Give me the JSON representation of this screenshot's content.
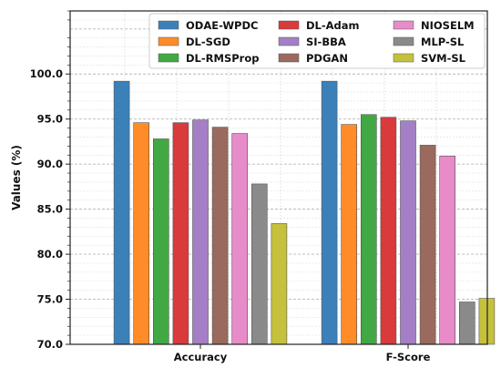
{
  "chart_data": {
    "type": "bar",
    "categories": [
      "Accuracy",
      "F-Score"
    ],
    "ylabel": "Values (%)",
    "xlabel": "",
    "ylim": [
      70.0,
      107.0
    ],
    "yticks": [
      "70.0",
      "75.0",
      "80.0",
      "85.0",
      "90.0",
      "95.0",
      "100.0"
    ],
    "grid": true,
    "legend_position": "top",
    "series": [
      {
        "name": "ODAE-WPDC",
        "color": "#3b80b9",
        "values": [
          99.2,
          99.2
        ]
      },
      {
        "name": "DL-SGD",
        "color": "#ff8c28",
        "values": [
          94.6,
          94.4
        ]
      },
      {
        "name": "DL-RMSProp",
        "color": "#42a844",
        "values": [
          92.8,
          95.5
        ]
      },
      {
        "name": "DL-Adam",
        "color": "#d93a3b",
        "values": [
          94.6,
          95.2
        ]
      },
      {
        "name": "SI-BBA",
        "color": "#a47fc6",
        "values": [
          94.9,
          94.8
        ]
      },
      {
        "name": "PDGAN",
        "color": "#9b6a5e",
        "values": [
          94.1,
          92.1
        ]
      },
      {
        "name": "NIOSELM",
        "color": "#e88bc9",
        "values": [
          93.4,
          90.9
        ]
      },
      {
        "name": "MLP-SL",
        "color": "#8a8a8a",
        "values": [
          87.8,
          74.7
        ]
      },
      {
        "name": "SVM-SL",
        "color": "#c6c13c",
        "values": [
          83.4,
          75.1
        ]
      }
    ]
  }
}
